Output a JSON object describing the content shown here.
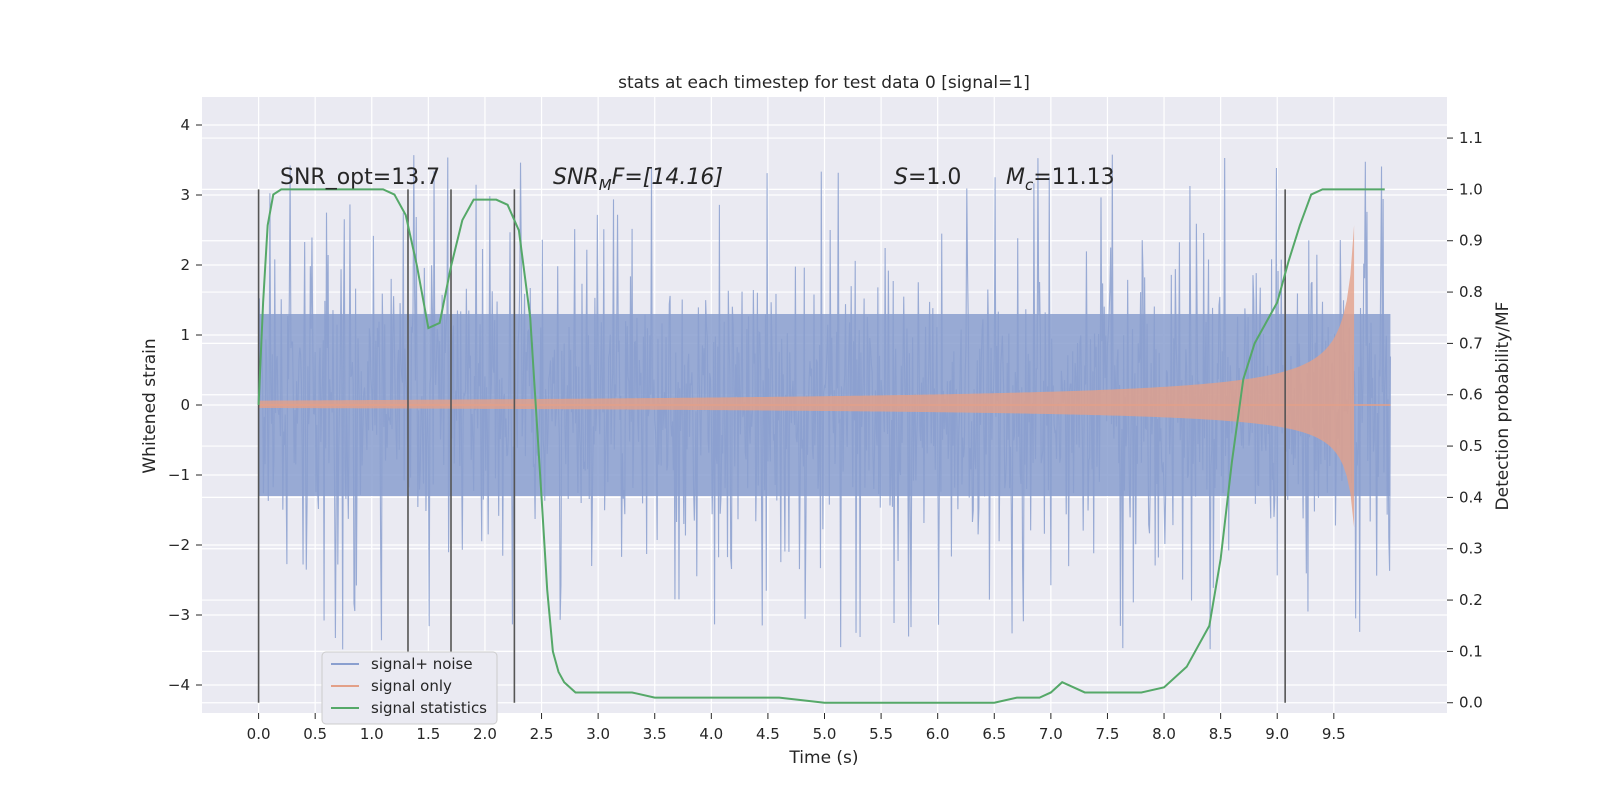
{
  "chart_data": {
    "type": "line",
    "title": "stats at each timestep for test data 0 [signal=1]",
    "xlabel": "Time (s)",
    "ylabel": "Whitened strain",
    "y2label": "Detection probability/MF",
    "xlim": [
      -0.5,
      10.5
    ],
    "ylim": [
      -4.4,
      4.4
    ],
    "y2lim": [
      -0.02,
      1.18
    ],
    "xticks": [
      "0.0",
      "0.5",
      "1.0",
      "1.5",
      "2.0",
      "2.5",
      "3.0",
      "3.5",
      "4.0",
      "4.5",
      "5.0",
      "5.5",
      "6.0",
      "6.5",
      "7.0",
      "7.5",
      "8.0",
      "8.5",
      "9.0",
      "9.5"
    ],
    "yticks": [
      "4",
      "3",
      "2",
      "1",
      "0",
      "−1",
      "−2",
      "−3",
      "−4"
    ],
    "y2ticks": [
      "1.1",
      "1.0",
      "0.9",
      "0.8",
      "0.7",
      "0.6",
      "0.5",
      "0.4",
      "0.3",
      "0.2",
      "0.1",
      "0.0"
    ],
    "grid": true,
    "legend_position": "lower-left",
    "annotations": {
      "snr_opt": "SNR_opt=13.7",
      "snr_mf_main": "SNR",
      "snr_mf_sub": "M",
      "snr_mf_rest": "F=[14.16]",
      "s_main": "S",
      "s_rest": "=1.0",
      "mc_main": "M",
      "mc_sub": "c",
      "mc_rest": "=11.13"
    },
    "vertical_markers_x": [
      0.0,
      1.32,
      1.7,
      2.26,
      9.07
    ],
    "series": [
      {
        "name": "signal+ noise",
        "color": "#8a9fcf",
        "x_range": [
          0.0,
          10.0
        ],
        "band_core": 1.3,
        "peak_range": [
          2.0,
          3.5
        ],
        "trough_range": [
          -1.7,
          -3.6
        ]
      },
      {
        "name": "signal only",
        "color": "#e3a088",
        "chirp_end": 9.68,
        "amplitude_max": 2.5
      },
      {
        "name": "signal statistics",
        "color": "#55a868",
        "x": [
          0.0,
          0.04,
          0.08,
          0.13,
          0.2,
          0.3,
          0.4,
          0.5,
          0.6,
          0.7,
          0.8,
          0.9,
          1.0,
          1.1,
          1.2,
          1.3,
          1.4,
          1.5,
          1.6,
          1.7,
          1.8,
          1.9,
          2.0,
          2.1,
          2.2,
          2.3,
          2.4,
          2.5,
          2.55,
          2.6,
          2.65,
          2.7,
          2.8,
          2.9,
          3.0,
          3.3,
          3.5,
          3.8,
          4.0,
          4.3,
          4.6,
          5.0,
          5.5,
          6.0,
          6.3,
          6.5,
          6.7,
          6.8,
          6.9,
          7.0,
          7.1,
          7.2,
          7.3,
          7.4,
          7.6,
          7.8,
          8.0,
          8.2,
          8.4,
          8.5,
          8.6,
          8.7,
          8.8,
          8.9,
          9.0,
          9.1,
          9.2,
          9.25,
          9.3,
          9.4,
          9.6,
          9.8,
          9.95
        ],
        "y": [
          0.58,
          0.78,
          0.93,
          0.99,
          1.0,
          1.0,
          1.0,
          1.0,
          1.0,
          1.0,
          1.0,
          1.0,
          1.0,
          1.0,
          0.99,
          0.95,
          0.85,
          0.73,
          0.74,
          0.85,
          0.94,
          0.98,
          0.98,
          0.98,
          0.97,
          0.92,
          0.75,
          0.4,
          0.22,
          0.1,
          0.06,
          0.04,
          0.02,
          0.02,
          0.02,
          0.02,
          0.01,
          0.01,
          0.01,
          0.01,
          0.01,
          0.0,
          0.0,
          0.0,
          0.0,
          0.0,
          0.01,
          0.01,
          0.01,
          0.02,
          0.04,
          0.03,
          0.02,
          0.02,
          0.02,
          0.02,
          0.03,
          0.07,
          0.15,
          0.28,
          0.47,
          0.63,
          0.7,
          0.74,
          0.78,
          0.86,
          0.93,
          0.96,
          0.99,
          1.0,
          1.0,
          1.0,
          1.0
        ]
      }
    ]
  }
}
